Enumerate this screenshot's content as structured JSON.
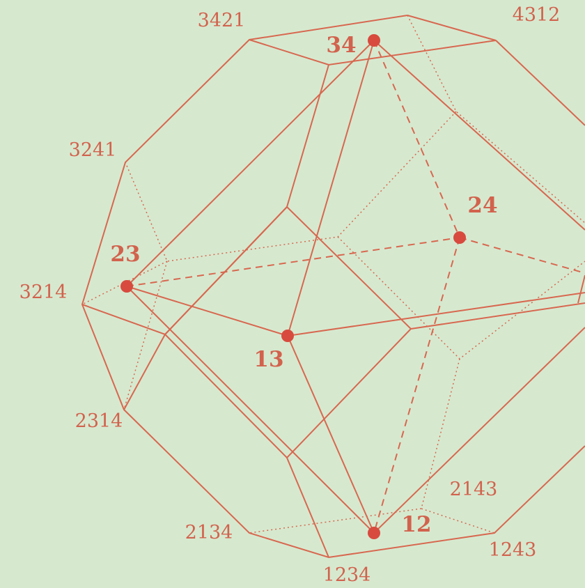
{
  "vertex_labels": [
    "3421",
    "4312",
    "3241",
    "3214",
    "2314",
    "2134",
    "1234",
    "1243",
    "2143"
  ],
  "point_labels": [
    "34",
    "24",
    "23",
    "13",
    "12"
  ]
}
